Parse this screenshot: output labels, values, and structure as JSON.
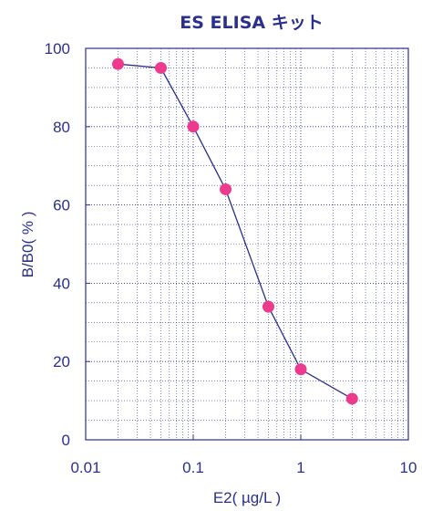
{
  "chart_data": {
    "type": "line",
    "title": "ES ELISA キット",
    "xlabel": "E2( µg/L )",
    "ylabel": "B/B0( % )",
    "x_scale": "log",
    "xlim": [
      0.01,
      10
    ],
    "ylim": [
      0,
      100
    ],
    "x_ticks": [
      0.01,
      0.1,
      1,
      10
    ],
    "x_tick_labels": [
      "0.01",
      "0.1",
      "1",
      "10"
    ],
    "y_ticks": [
      0,
      20,
      40,
      60,
      80,
      100
    ],
    "y_tick_labels": [
      "0",
      "20",
      "40",
      "60",
      "80",
      "100"
    ],
    "grid": true,
    "series": [
      {
        "x": [
          0.02,
          0.05,
          0.1,
          0.2,
          0.5,
          1,
          3
        ],
        "y": [
          96,
          95,
          80,
          64,
          34,
          18,
          10.5
        ]
      }
    ],
    "colors": {
      "axis": "#2b2f8f",
      "line": "#2b2f8f",
      "marker": "#ee3a8c",
      "grid": "#2b2f8f",
      "text": "#2b2f8f"
    }
  }
}
